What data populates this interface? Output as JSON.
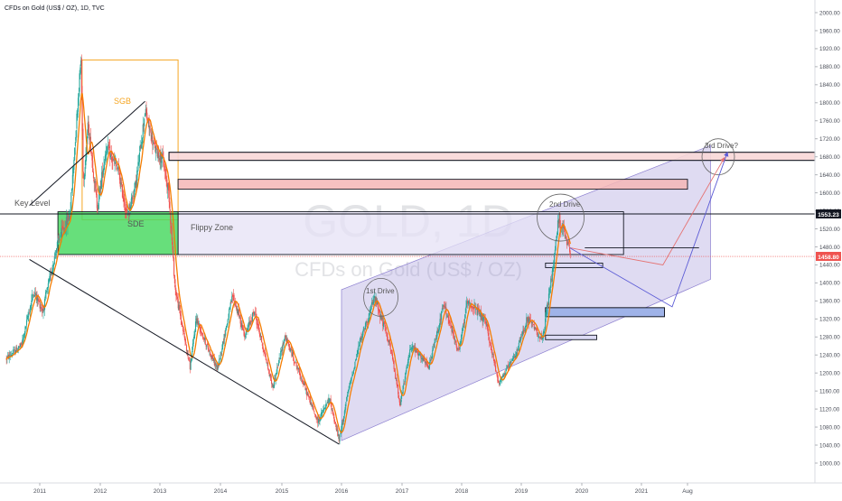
{
  "header": {
    "symbol_line": "CFDs on Gold (US$ / OZ), 1D, TVC"
  },
  "watermark": {
    "big": "GOLD, 1D",
    "small": "CFDs on Gold (US$ / OZ)"
  },
  "badges": {
    "upper_label": "1553.23",
    "lower_label": "1458.80",
    "upper_color": "#131722",
    "lower_color": "#ef5350"
  },
  "annotations": {
    "sgb": "SGB",
    "key_level": "Key Level",
    "sde": "SDE",
    "flippy_zone": "Flippy Zone",
    "drive1": "1st Drive",
    "drive2": "2nd Drive",
    "drive3": "3rd Drive?"
  },
  "colors": {
    "candle_up": "#26a69a",
    "candle_down": "#ef5350",
    "ma_line": "#f57c00",
    "channel_fill": "#9b8fd6",
    "green_zone": "#4cd964",
    "pink_zone": "#f4b6b6",
    "blue_zone": "#9fb3e8",
    "arrow_blue": "#5c5cd6",
    "arrow_pink": "#e57373",
    "sgb_orange": "#f5a623"
  },
  "chart_data": {
    "type": "candlestick",
    "symbol": "CFDs on Gold (US$ / OZ), 1D, TVC",
    "timeframe": "1D",
    "x_ticks": [
      "2011",
      "2012",
      "2013",
      "2014",
      "2015",
      "2016",
      "2017",
      "2018",
      "2019",
      "2020",
      "2021",
      "Aug"
    ],
    "y_ticks": [
      1000,
      1040,
      1080,
      1120,
      1160,
      1200,
      1240,
      1280,
      1320,
      1360,
      1400,
      1440,
      1480,
      1520,
      1560,
      1600,
      1640,
      1680,
      1720,
      1760,
      1800,
      1840,
      1880,
      1920,
      1960,
      2000
    ],
    "y_tick_labels": [
      "1000.00",
      "1040.00",
      "1080.00",
      "1120.00",
      "1160.00",
      "1200.00",
      "1240.00",
      "1280.00",
      "1320.00",
      "1360.00",
      "1400.00",
      "1440.00",
      "1480.00",
      "1520.00",
      "1560.00",
      "1600.00",
      "1640.00",
      "1680.00",
      "1720.00",
      "1760.00",
      "1800.00",
      "1840.00",
      "1880.00",
      "1920.00",
      "1960.00",
      "2000.00"
    ],
    "ylim": [
      985,
      2015
    ],
    "xlim": [
      2010.45,
      2022.3
    ],
    "price_path": [
      [
        2010.45,
        1232
      ],
      [
        2010.7,
        1262
      ],
      [
        2010.9,
        1382
      ],
      [
        2011.05,
        1338
      ],
      [
        2011.3,
        1492
      ],
      [
        2011.5,
        1552
      ],
      [
        2011.62,
        1785
      ],
      [
        2011.68,
        1898
      ],
      [
        2011.72,
        1622
      ],
      [
        2011.8,
        1752
      ],
      [
        2011.95,
        1568
      ],
      [
        2012.1,
        1702
      ],
      [
        2012.3,
        1648
      ],
      [
        2012.45,
        1548
      ],
      [
        2012.6,
        1622
      ],
      [
        2012.75,
        1782
      ],
      [
        2012.9,
        1702
      ],
      [
        2013.05,
        1672
      ],
      [
        2013.15,
        1595
      ],
      [
        2013.25,
        1388
      ],
      [
        2013.5,
        1212
      ],
      [
        2013.6,
        1322
      ],
      [
        2013.75,
        1268
      ],
      [
        2013.95,
        1208
      ],
      [
        2014.2,
        1372
      ],
      [
        2014.4,
        1282
      ],
      [
        2014.55,
        1338
      ],
      [
        2014.85,
        1168
      ],
      [
        2015.05,
        1282
      ],
      [
        2015.3,
        1198
      ],
      [
        2015.6,
        1092
      ],
      [
        2015.8,
        1142
      ],
      [
        2015.96,
        1050
      ],
      [
        2016.1,
        1152
      ],
      [
        2016.3,
        1268
      ],
      [
        2016.55,
        1368
      ],
      [
        2016.8,
        1262
      ],
      [
        2016.97,
        1132
      ],
      [
        2017.15,
        1262
      ],
      [
        2017.45,
        1212
      ],
      [
        2017.7,
        1352
      ],
      [
        2017.95,
        1245
      ],
      [
        2018.1,
        1362
      ],
      [
        2018.4,
        1312
      ],
      [
        2018.62,
        1178
      ],
      [
        2018.9,
        1238
      ],
      [
        2019.1,
        1322
      ],
      [
        2019.35,
        1272
      ],
      [
        2019.5,
        1412
      ],
      [
        2019.62,
        1545
      ],
      [
        2019.75,
        1492
      ],
      [
        2019.82,
        1462
      ]
    ],
    "annotations": {
      "key_level_price": 1553.23,
      "current_price": 1458.8,
      "zones": [
        {
          "name": "SDE green zone",
          "x": [
            2011.3,
            2013.3
          ],
          "y": [
            1463,
            1558
          ]
        },
        {
          "name": "Flippy Zone",
          "x": [
            2013.3,
            2020.7
          ],
          "y": [
            1463,
            1558
          ]
        },
        {
          "name": "upper resistance",
          "x": [
            2013.15,
            2022.3
          ],
          "y": [
            1672,
            1690
          ]
        },
        {
          "name": "pink resistance",
          "x": [
            2013.3,
            2021.6
          ],
          "y": [
            1608,
            1630
          ]
        },
        {
          "name": "support 1",
          "x": [
            2019.4,
            2020.35
          ],
          "y": [
            1434,
            1444
          ]
        },
        {
          "name": "support 2 (blue)",
          "x": [
            2019.4,
            2021.3
          ],
          "y": [
            1325,
            1345
          ]
        },
        {
          "name": "support 3",
          "x": [
            2019.4,
            2020.25
          ],
          "y": [
            1274,
            1284
          ]
        },
        {
          "name": "SGB",
          "x": [
            2011.7,
            2013.3
          ],
          "y": [
            1540,
            1895
          ]
        }
      ]
    }
  }
}
